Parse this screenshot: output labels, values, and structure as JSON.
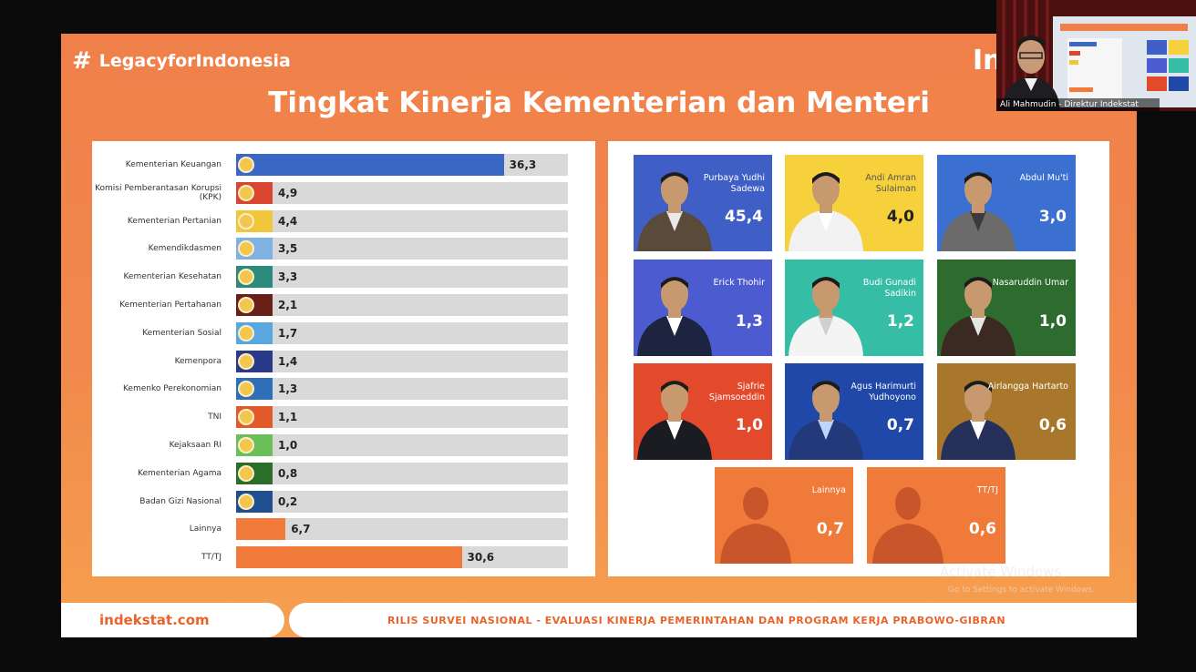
{
  "header": {
    "hashtag": "LegacyforIndonesia",
    "hash_symbol": "#",
    "logo_partial": "In",
    "title": "Tingkat Kinerja Kementerian dan Menteri"
  },
  "chart_data": {
    "type": "bar",
    "orientation": "horizontal",
    "categories": [
      "Kementerian Keuangan",
      "Komisi Pemberantasan Korupsi (KPK)",
      "Kementerian Pertanian",
      "Kemendikdasmen",
      "Kementerian Kesehatan",
      "Kementerian Pertahanan",
      "Kementerian Sosial",
      "Kemenpora",
      "Kemenko Perekonomian",
      "TNI",
      "Kejaksaan RI",
      "Kementerian Agama",
      "Badan Gizi Nasional",
      "Lainnya",
      "TT/TJ"
    ],
    "values": [
      36.3,
      4.9,
      4.4,
      3.5,
      3.3,
      2.1,
      1.7,
      1.4,
      1.3,
      1.1,
      1.0,
      0.8,
      0.2,
      6.7,
      30.6
    ],
    "value_labels": [
      "36,3",
      "4,9",
      "4,4",
      "3,5",
      "3,3",
      "2,1",
      "1,7",
      "1,4",
      "1,3",
      "1,1",
      "1,0",
      "0,8",
      "0,2",
      "6,7",
      "30,6"
    ],
    "bar_colors": [
      "#3a66c4",
      "#d9452e",
      "#f2c63b",
      "#7fb2e3",
      "#2c8a7c",
      "#6a1f17",
      "#5aa7e0",
      "#2a3a8a",
      "#2f6fb8",
      "#e05a2a",
      "#6bbf59",
      "#2a6e2a",
      "#1f4f8f",
      "#f07a3a",
      "#f07a3a"
    ],
    "xlim": [
      0,
      45
    ],
    "legend": "none",
    "grid": false
  },
  "ministers": [
    {
      "name": "Purbaya Yudhi Sadewa",
      "value": "45,4",
      "color": "#3f5fc7",
      "theme": "dark"
    },
    {
      "name": "Andi Amran Sulaiman",
      "value": "4,0",
      "color": "#f7d13b",
      "theme": "light"
    },
    {
      "name": "Abdul Mu'ti",
      "value": "3,0",
      "color": "#3b6fd0",
      "theme": "dark"
    },
    {
      "name": "Erick Thohir",
      "value": "1,3",
      "color": "#4c5bd0",
      "theme": "dark"
    },
    {
      "name": "Budi Gunadi Sadikin",
      "value": "1,2",
      "color": "#35bda5",
      "theme": "dark"
    },
    {
      "name": "Nasaruddin Umar",
      "value": "1,0",
      "color": "#2e6b2e",
      "theme": "dark"
    },
    {
      "name": "Sjafrie Sjamsoeddin",
      "value": "1,0",
      "color": "#e34a2c",
      "theme": "dark"
    },
    {
      "name": "Agus Harimurti Yudhoyono",
      "value": "0,7",
      "color": "#1f48a8",
      "theme": "dark"
    },
    {
      "name": "Airlangga Hartarto",
      "value": "0,6",
      "color": "#a8772c",
      "theme": "dark"
    },
    {
      "name": "Lainnya",
      "value": "0,7",
      "color": "#f07a3a",
      "theme": "dark"
    },
    {
      "name": "TT/TJ",
      "value": "0,6",
      "color": "#f07a3a",
      "theme": "dark"
    }
  ],
  "footer": {
    "site": "indekstat.com",
    "caption": "RILIS SURVEI NASIONAL - EVALUASI KINERJA PEMERINTAHAN DAN PROGRAM KERJA PRABOWO-GIBRAN"
  },
  "webcam": {
    "caption": "Ali Mahmudin - Direktur Indekstat"
  },
  "overlay": {
    "activate_title": "Activate Windows",
    "activate_sub": "Go to Settings to activate Windows."
  }
}
